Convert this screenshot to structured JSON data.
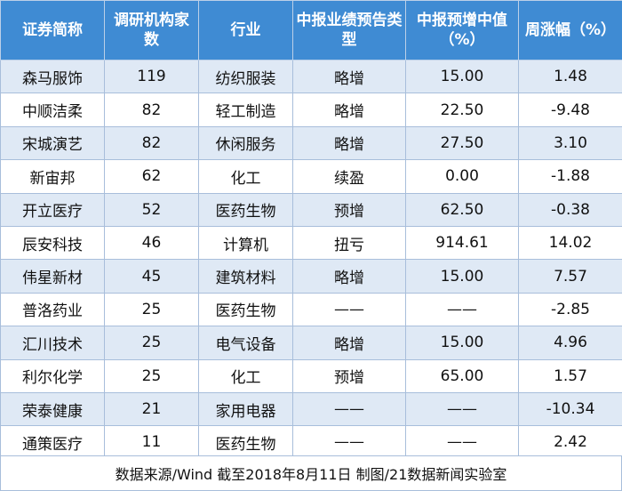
{
  "headers": [
    "证券简称",
    "调研机构家数",
    "行业",
    "中报业绩预告类型",
    "中报预增中值（%）",
    "周涨幅（%）"
  ],
  "rows": [
    [
      "森马服饰",
      "119",
      "纺织服装",
      "略增",
      "15.00",
      "1.48"
    ],
    [
      "中顺洁柔",
      "82",
      "轻工制造",
      "略增",
      "22.50",
      "-9.48"
    ],
    [
      "宋城演艺",
      "82",
      "休闲服务",
      "略增",
      "27.50",
      "3.10"
    ],
    [
      "新宙邦",
      "62",
      "化工",
      "续盈",
      "0.00",
      "-1.88"
    ],
    [
      "开立医疗",
      "52",
      "医药生物",
      "预增",
      "62.50",
      "-0.38"
    ],
    [
      "辰安科技",
      "46",
      "计算机",
      "扭亏",
      "914.61",
      "14.02"
    ],
    [
      "伟星新材",
      "45",
      "建筑材料",
      "略增",
      "15.00",
      "7.57"
    ],
    [
      "普洛药业",
      "25",
      "医药生物",
      "——",
      "——",
      "-2.85"
    ],
    [
      "汇川技术",
      "25",
      "电气设备",
      "略增",
      "15.00",
      "4.96"
    ],
    [
      "利尔化学",
      "25",
      "化工",
      "预增",
      "65.00",
      "1.57"
    ],
    [
      "荣泰健康",
      "21",
      "家用电器",
      "——",
      "——",
      "-10.34"
    ],
    [
      "通策医疗",
      "11",
      "医药生物",
      "——",
      "——",
      "2.42"
    ]
  ],
  "footer": "数据来源/Wind 截至2018年8月11日 制图/21数据新闻实验室",
  "colors": {
    "header_bg": "#3f8bd3",
    "stripe_bg": "#dfe9f5",
    "border": "#a8bedb"
  }
}
